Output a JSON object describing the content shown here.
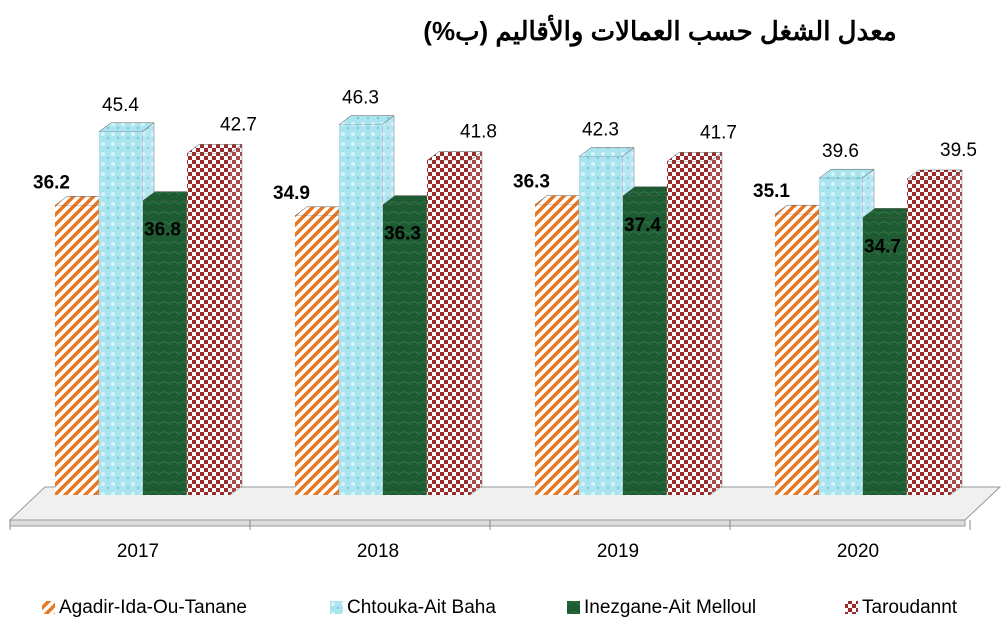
{
  "chart_data": {
    "type": "bar3d",
    "title": "معدل الشغل حسب العمالات والأقاليم (ب%)",
    "categories": [
      "2017",
      "2018",
      "2019",
      "2020"
    ],
    "series": [
      {
        "name": "Agadir-Ida-Ou-Tanane",
        "color": "#e87722",
        "values": [
          36.2,
          34.9,
          36.3,
          35.1
        ]
      },
      {
        "name": "Chtouka-Ait Baha",
        "color": "#a9e4ef",
        "values": [
          45.4,
          46.3,
          42.3,
          39.6
        ]
      },
      {
        "name": "Inezgane-Ait Melloul",
        "color": "#1e5a32",
        "values": [
          36.8,
          36.3,
          37.4,
          34.7
        ]
      },
      {
        "name": "Taroudannt",
        "color": "#9b2a2a",
        "values": [
          42.7,
          41.8,
          41.7,
          39.5
        ]
      }
    ]
  }
}
